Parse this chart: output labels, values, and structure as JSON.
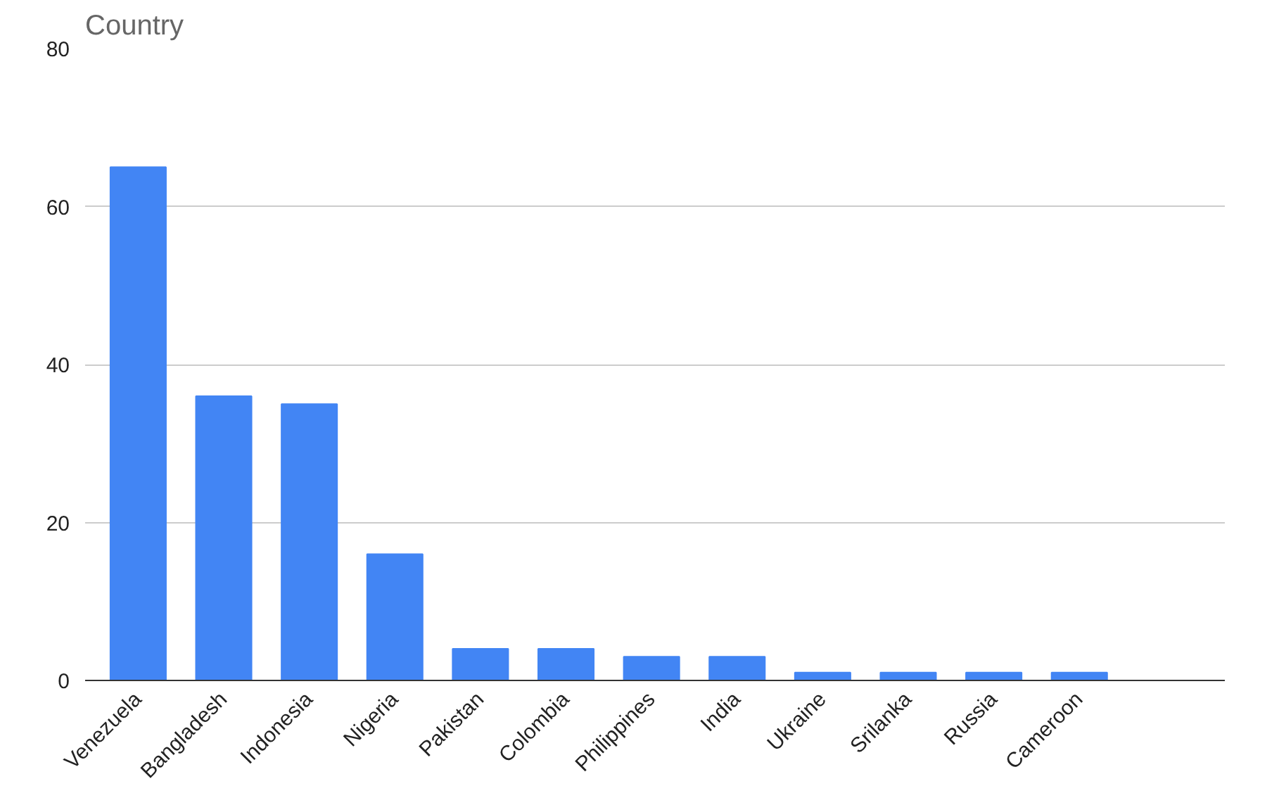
{
  "chart_data": {
    "type": "bar",
    "title": "Country",
    "categories": [
      "Venezuela",
      "Bangladesh",
      "Indonesia",
      "Nigeria",
      "Pakistan",
      "Colombia",
      "Philippines",
      "India",
      "Ukraine",
      "Srilanka",
      "Russia",
      "Cameroon"
    ],
    "values": [
      65,
      36,
      35,
      16,
      4,
      4,
      3,
      3,
      1,
      1,
      1,
      1
    ],
    "color": "#4285f4",
    "ylim": [
      0,
      80
    ],
    "yticks": [
      0,
      20,
      40,
      60,
      80
    ],
    "grid": "y"
  }
}
